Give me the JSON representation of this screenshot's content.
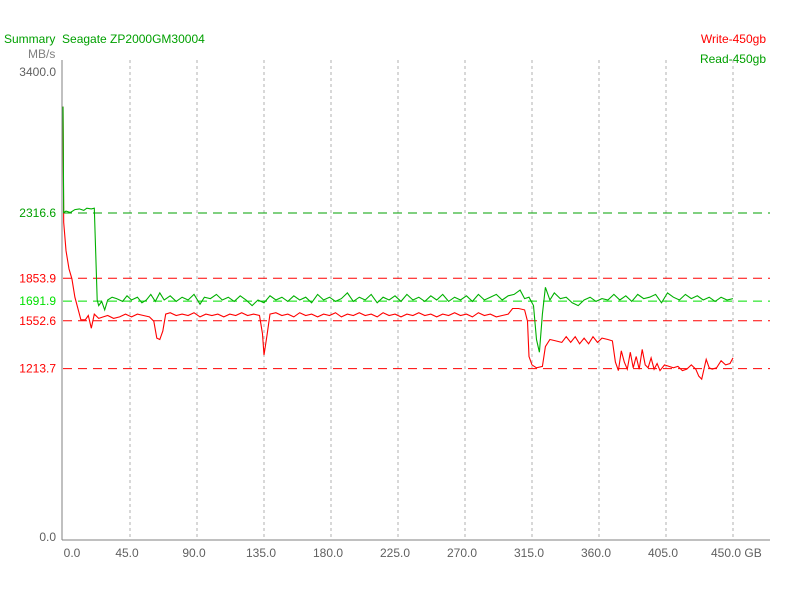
{
  "header": {
    "summary_label": "Summary",
    "device_name": "Seagate ZP2000GM30004"
  },
  "colors": {
    "title": "#00a000",
    "write": "#ff0000",
    "read": "#00b000",
    "read_avg": "#00e000",
    "axis": "#808080",
    "grid": "#b0b0b0",
    "tick_text": "#606060"
  },
  "chart_data": {
    "type": "line",
    "title": "Summary  Seagate ZP2000GM30004",
    "ylabel": "MB/s",
    "xunit": "GB",
    "xlim": [
      0,
      450
    ],
    "ylim": [
      0,
      3400
    ],
    "grid": "vertical dashed",
    "legend_placement": "top-right",
    "x_ticks": [
      "0.0",
      "45.0",
      "90.0",
      "135.0",
      "180.0",
      "225.0",
      "270.0",
      "315.0",
      "360.0",
      "405.0",
      "450.0 GB"
    ],
    "y_ticks": [
      "0.0",
      "3400.0"
    ],
    "reference_lines": [
      {
        "value": 2316.6,
        "label": "2316.6",
        "color": "#00a000"
      },
      {
        "value": 1853.9,
        "label": "1853.9",
        "color": "#ff0000"
      },
      {
        "value": 1691.9,
        "label": "1691.9",
        "color": "#00e000"
      },
      {
        "value": 1552.6,
        "label": "1552.6",
        "color": "#ff0000"
      },
      {
        "value": 1213.7,
        "label": "1213.7",
        "color": "#ff0000"
      }
    ],
    "series": [
      {
        "name": "Write-450gb",
        "color": "#ff0000",
        "x": [
          0,
          0.5,
          2,
          4,
          6,
          8,
          10,
          12,
          15,
          17,
          19,
          21,
          24,
          27,
          30,
          34,
          38,
          42,
          46,
          50,
          54,
          58,
          61,
          63,
          65,
          67,
          69,
          72,
          76,
          80,
          84,
          88,
          92,
          96,
          100,
          104,
          108,
          112,
          116,
          120,
          124,
          128,
          132,
          134,
          135,
          137,
          139,
          143,
          147,
          151,
          155,
          159,
          163,
          167,
          171,
          175,
          179,
          183,
          187,
          191,
          195,
          199,
          203,
          207,
          211,
          215,
          219,
          223,
          227,
          231,
          235,
          239,
          243,
          247,
          251,
          255,
          259,
          263,
          267,
          271,
          275,
          279,
          283,
          287,
          291,
          295,
          299,
          302,
          306,
          310,
          312,
          313,
          315,
          318,
          322,
          324,
          327,
          331,
          335,
          338,
          341,
          344,
          347,
          350,
          353,
          356,
          359,
          362,
          366,
          369,
          371,
          373,
          375,
          377,
          379,
          381,
          383,
          385,
          387,
          389,
          391,
          393,
          395,
          397,
          399,
          401,
          404,
          407,
          410,
          413,
          416,
          419,
          422,
          425,
          427,
          429,
          432,
          434,
          436,
          439,
          442,
          445,
          448,
          450
        ],
        "y": [
          3070,
          2250,
          2050,
          1920,
          1850,
          1720,
          1640,
          1560,
          1560,
          1590,
          1500,
          1600,
          1570,
          1580,
          1590,
          1570,
          1580,
          1600,
          1580,
          1600,
          1590,
          1580,
          1550,
          1430,
          1420,
          1480,
          1600,
          1610,
          1590,
          1600,
          1590,
          1610,
          1580,
          1600,
          1590,
          1600,
          1580,
          1600,
          1590,
          1610,
          1590,
          1600,
          1590,
          1460,
          1310,
          1450,
          1600,
          1610,
          1590,
          1600,
          1580,
          1610,
          1590,
          1600,
          1580,
          1600,
          1590,
          1610,
          1580,
          1600,
          1590,
          1610,
          1590,
          1600,
          1580,
          1610,
          1590,
          1600,
          1580,
          1600,
          1590,
          1610,
          1590,
          1600,
          1580,
          1600,
          1590,
          1610,
          1590,
          1600,
          1580,
          1610,
          1590,
          1600,
          1580,
          1590,
          1600,
          1640,
          1640,
          1630,
          1550,
          1300,
          1240,
          1220,
          1230,
          1370,
          1420,
          1410,
          1400,
          1440,
          1400,
          1440,
          1390,
          1430,
          1390,
          1440,
          1400,
          1430,
          1420,
          1410,
          1260,
          1200,
          1340,
          1260,
          1210,
          1330,
          1220,
          1300,
          1210,
          1350,
          1240,
          1220,
          1290,
          1210,
          1250,
          1200,
          1240,
          1230,
          1220,
          1230,
          1200,
          1210,
          1240,
          1210,
          1160,
          1140,
          1280,
          1220,
          1210,
          1220,
          1270,
          1240,
          1250,
          1290
        ]
      },
      {
        "name": "Read-450gb",
        "color": "#00b000",
        "x": [
          0,
          0.5,
          2,
          5,
          8,
          11,
          14,
          16,
          19,
          21,
          23,
          24,
          26,
          28,
          30,
          33,
          36,
          40,
          43,
          46,
          50,
          53,
          56,
          59,
          62,
          65,
          68,
          72,
          76,
          80,
          84,
          88,
          92,
          95,
          99,
          103,
          107,
          111,
          115,
          119,
          123,
          127,
          131,
          135,
          139,
          143,
          147,
          151,
          155,
          159,
          163,
          167,
          171,
          175,
          179,
          183,
          187,
          191,
          195,
          199,
          203,
          207,
          211,
          215,
          219,
          223,
          227,
          231,
          235,
          239,
          243,
          247,
          251,
          255,
          259,
          263,
          267,
          271,
          275,
          279,
          283,
          287,
          291,
          295,
          299,
          303,
          307,
          310,
          313,
          316,
          318,
          320,
          322,
          324,
          327,
          330,
          334,
          338,
          342,
          346,
          350,
          354,
          358,
          362,
          366,
          370,
          374,
          378,
          382,
          386,
          390,
          394,
          398,
          402,
          406,
          410,
          414,
          418,
          422,
          426,
          430,
          434,
          438,
          442,
          446,
          450
        ],
        "y": [
          3070,
          2320,
          2330,
          2320,
          2340,
          2345,
          2335,
          2350,
          2345,
          2350,
          1700,
          1660,
          1690,
          1630,
          1700,
          1720,
          1710,
          1690,
          1730,
          1700,
          1720,
          1680,
          1700,
          1740,
          1690,
          1750,
          1700,
          1730,
          1690,
          1720,
          1700,
          1740,
          1670,
          1720,
          1710,
          1740,
          1700,
          1720,
          1690,
          1730,
          1700,
          1660,
          1700,
          1680,
          1730,
          1700,
          1720,
          1690,
          1730,
          1700,
          1720,
          1680,
          1740,
          1700,
          1720,
          1690,
          1710,
          1750,
          1690,
          1720,
          1700,
          1740,
          1680,
          1720,
          1700,
          1730,
          1690,
          1740,
          1700,
          1720,
          1690,
          1730,
          1700,
          1740,
          1690,
          1720,
          1700,
          1730,
          1690,
          1740,
          1700,
          1720,
          1740,
          1700,
          1730,
          1740,
          1770,
          1710,
          1720,
          1660,
          1420,
          1330,
          1600,
          1790,
          1700,
          1750,
          1710,
          1720,
          1680,
          1660,
          1700,
          1720,
          1690,
          1710,
          1700,
          1740,
          1700,
          1730,
          1690,
          1740,
          1710,
          1720,
          1740,
          1680,
          1750,
          1720,
          1700,
          1740,
          1710,
          1730,
          1700,
          1720,
          1690,
          1720,
          1700,
          1710
        ]
      }
    ]
  }
}
